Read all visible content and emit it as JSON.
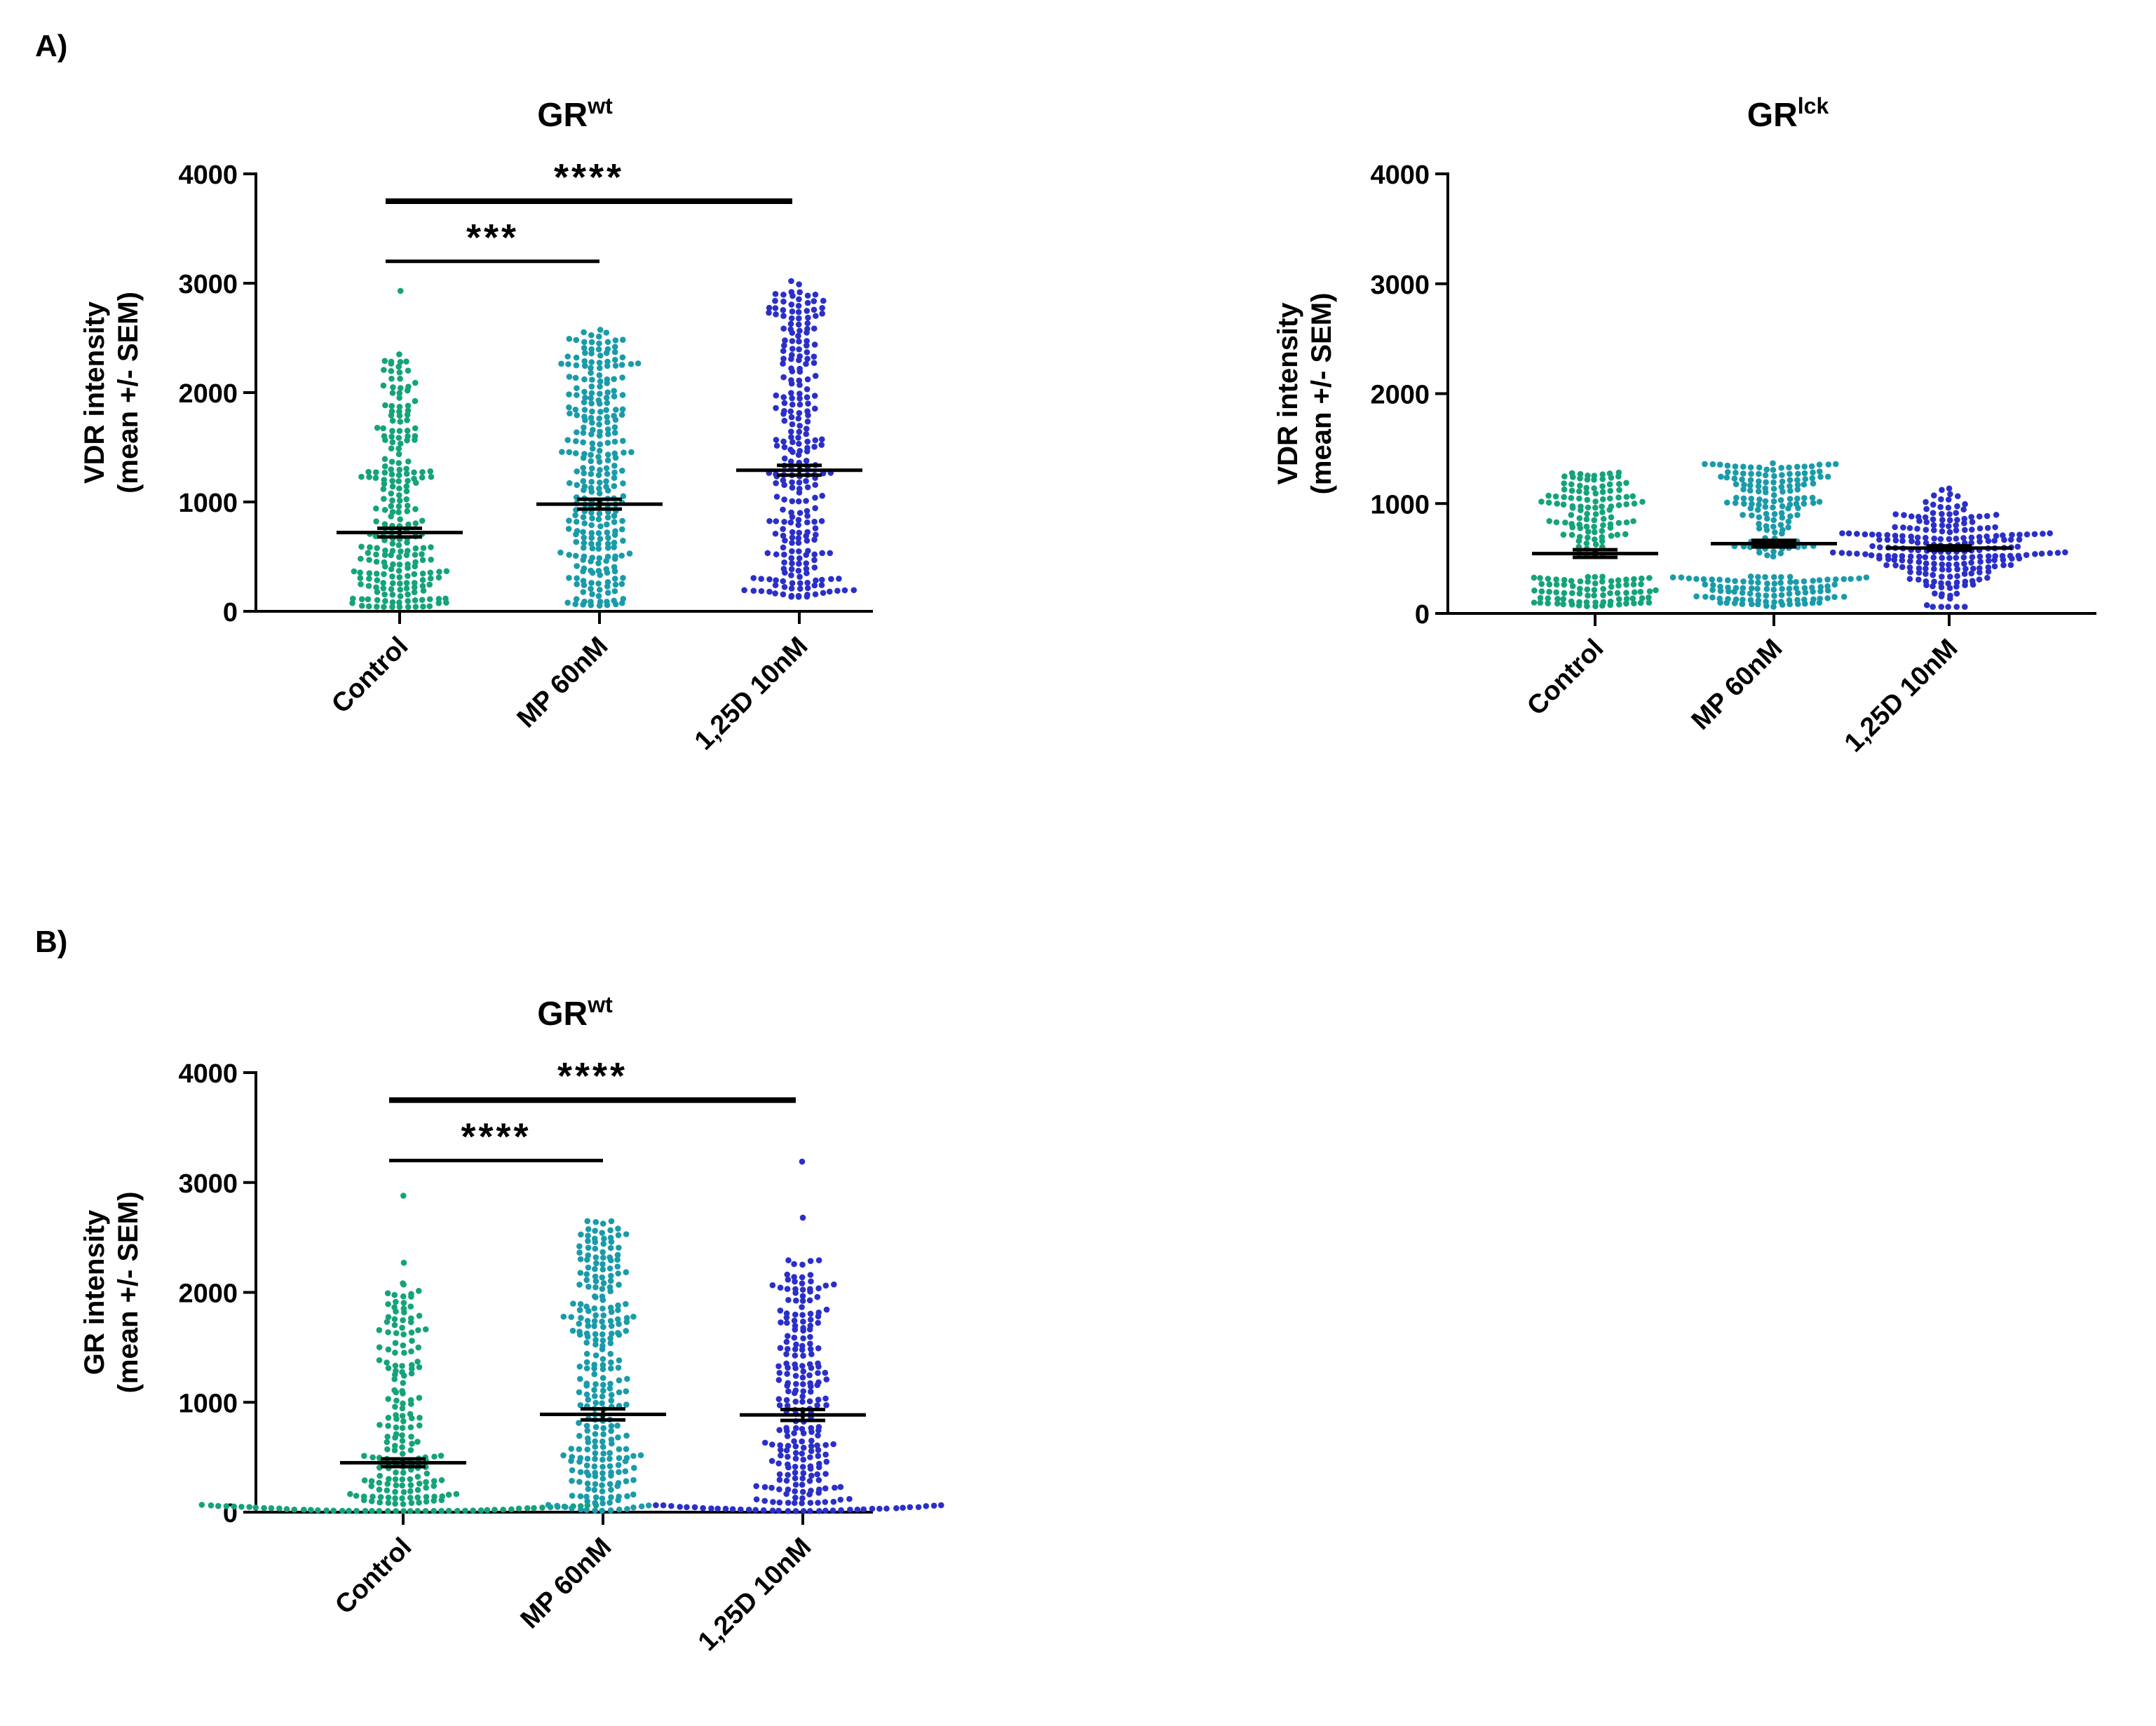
{
  "figure": {
    "panel_labels": [
      "A)",
      "B)"
    ]
  },
  "colors": {
    "control": "#14A37A",
    "mp": "#1A9BAA",
    "vitd": "#2B2FC8",
    "axis": "#000000"
  },
  "chart_data": [
    {
      "type": "scatter",
      "variant": "beeswarm-with-mean-sem",
      "panel": "A)",
      "title_base": "GR",
      "title_sup": "wt",
      "ylabel_line1": "VDR intensity",
      "ylabel_line2": "(mean +/- SEM)",
      "ylim": [
        0,
        4000
      ],
      "yticks": [
        "0",
        "1000",
        "2000",
        "3000",
        "4000"
      ],
      "yticks_values": [
        0,
        1000,
        2000,
        3000,
        4000
      ],
      "categories": [
        "Control",
        "MP 60nM",
        "1,25D 10nM"
      ],
      "series": [
        {
          "name": "Control",
          "color_key": "control",
          "n": 230,
          "mean": 720,
          "sem": 40,
          "min": 40,
          "max": 2930,
          "dist": "skew",
          "outliers": [
            2930,
            2350,
            2280
          ]
        },
        {
          "name": "MP 60nM",
          "color_key": "mp",
          "n": 280,
          "mean": 980,
          "sem": 45,
          "min": 50,
          "max": 2580,
          "dist": "uniformish",
          "outliers": []
        },
        {
          "name": "1,25D 10nM",
          "color_key": "vitd",
          "n": 260,
          "mean": 1290,
          "sem": 45,
          "min": 130,
          "max": 3020,
          "dist": "uniformish",
          "outliers": [
            3020,
            2990
          ]
        }
      ],
      "significance": [
        {
          "from": 0,
          "to": 2,
          "y": 3750,
          "label": "****"
        },
        {
          "from": 0,
          "to": 1,
          "y": 3200,
          "label": "***"
        }
      ]
    },
    {
      "type": "scatter",
      "variant": "beeswarm-with-mean-sem",
      "panel": "A)",
      "title_base": "GR",
      "title_sup": "lck",
      "ylabel_line1": "VDR intensity",
      "ylabel_line2": "(mean +/- SEM)",
      "ylim": [
        0,
        4000
      ],
      "yticks": [
        "0",
        "1000",
        "2000",
        "3000",
        "4000"
      ],
      "yticks_values": [
        0,
        1000,
        2000,
        3000,
        4000
      ],
      "categories": [
        "Control",
        "MP 60nM",
        "1,25D 10nM"
      ],
      "series": [
        {
          "name": "Control",
          "color_key": "control",
          "n": 190,
          "mean": 545,
          "sem": 35,
          "min": 50,
          "max": 1290,
          "dist": "bimodal",
          "outliers": []
        },
        {
          "name": "MP 60nM",
          "color_key": "mp",
          "n": 240,
          "mean": 635,
          "sem": 30,
          "min": 40,
          "max": 1370,
          "dist": "bimodal",
          "outliers": []
        },
        {
          "name": "1,25D 10nM",
          "color_key": "vitd",
          "n": 230,
          "mean": 595,
          "sem": 20,
          "min": 60,
          "max": 1160,
          "dist": "normal",
          "outliers": []
        }
      ],
      "significance": []
    },
    {
      "type": "scatter",
      "variant": "beeswarm-with-mean-sem",
      "panel": "B)",
      "title_base": "GR",
      "title_sup": "wt",
      "ylabel_line1": "GR intensity",
      "ylabel_line2": "(mean +/- SEM)",
      "ylim": [
        0,
        4000
      ],
      "yticks": [
        "0",
        "1000",
        "2000",
        "3000",
        "4000"
      ],
      "yticks_values": [
        0,
        1000,
        2000,
        3000,
        4000
      ],
      "categories": [
        "Control",
        "MP 60nM",
        "1,25D 10nM"
      ],
      "series": [
        {
          "name": "Control",
          "color_key": "control",
          "n": 230,
          "mean": 450,
          "sem": 35,
          "min": 10,
          "max": 2880,
          "dist": "skewstrong",
          "outliers": [
            2880,
            2270
          ]
        },
        {
          "name": "MP 60nM",
          "color_key": "mp",
          "n": 270,
          "mean": 890,
          "sem": 50,
          "min": 10,
          "max": 2650,
          "dist": "uniformish",
          "outliers": []
        },
        {
          "name": "1,25D 10nM",
          "color_key": "vitd",
          "n": 260,
          "mean": 885,
          "sem": 50,
          "min": 10,
          "max": 3190,
          "dist": "skew",
          "outliers": [
            3190,
            2680
          ]
        }
      ],
      "significance": [
        {
          "from": 0,
          "to": 2,
          "y": 3750,
          "label": "****"
        },
        {
          "from": 0,
          "to": 1,
          "y": 3200,
          "label": "****"
        }
      ]
    }
  ]
}
